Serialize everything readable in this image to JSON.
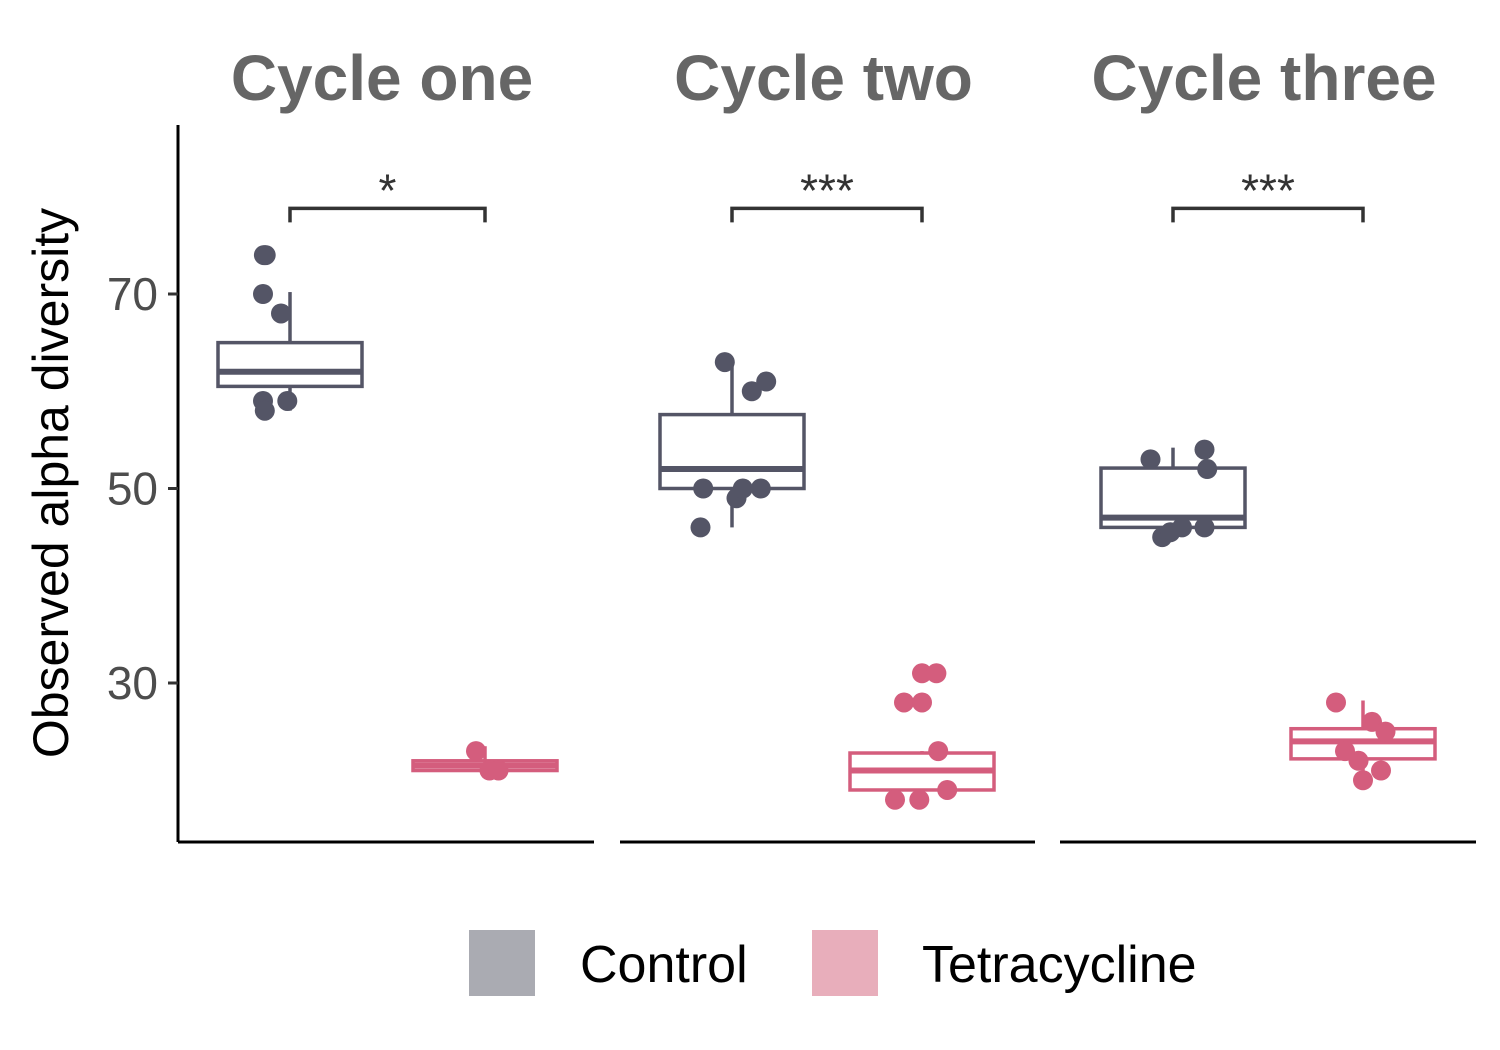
{
  "chart_data": {
    "type": "box",
    "ylabel": "Observed alpha diversity",
    "ylim": [
      13,
      90
    ],
    "yticks": [
      30,
      50,
      70
    ],
    "colors": {
      "Control": "#545566",
      "Tetracycline": "#d45d7d"
    },
    "legend": {
      "position": "bottom",
      "items": [
        {
          "label": "Control",
          "fill": "#aaabb2"
        },
        {
          "label": "Tetracycline",
          "fill": "#e8aebb"
        }
      ]
    },
    "facets": [
      {
        "title": "Cycle one",
        "significance": "*",
        "bracket_y": 78.8,
        "groups": [
          {
            "name": "Control",
            "box": {
              "low": 58,
              "q1": 60.5,
              "median": 62,
              "q3": 65,
              "high": 70.2
            },
            "points": [
              [
                -0.29,
                74
              ],
              [
                -0.27,
                74
              ],
              [
                -0.3,
                70
              ],
              [
                -0.3,
                59
              ],
              [
                -0.28,
                58
              ],
              [
                -0.1,
                68
              ],
              [
                -0.03,
                59
              ]
            ]
          },
          {
            "name": "Tetracycline",
            "box": {
              "low": 21,
              "q1": 21,
              "median": 21.5,
              "q3": 22,
              "high": 23.5
            },
            "points": [
              [
                -0.1,
                23
              ],
              [
                0.05,
                21
              ],
              [
                0.15,
                21
              ]
            ]
          }
        ]
      },
      {
        "title": "Cycle two",
        "significance": "***",
        "bracket_y": 78.8,
        "groups": [
          {
            "name": "Control",
            "box": {
              "low": 46,
              "q1": 50,
              "median": 52,
              "q3": 57.6,
              "high": 63.2
            },
            "points": [
              [
                -0.08,
                63
              ],
              [
                0.22,
                60
              ],
              [
                0.38,
                61
              ],
              [
                -0.35,
                46
              ],
              [
                -0.32,
                50
              ],
              [
                0.05,
                49
              ],
              [
                0.12,
                50
              ],
              [
                0.32,
                50
              ]
            ]
          },
          {
            "name": "Tetracycline",
            "box": {
              "low": 18,
              "q1": 19,
              "median": 21,
              "q3": 22.8,
              "high": 23
            },
            "points": [
              [
                0.0,
                31
              ],
              [
                0.16,
                31
              ],
              [
                -0.2,
                28
              ],
              [
                0.0,
                28
              ],
              [
                0.18,
                23
              ],
              [
                -0.3,
                18
              ],
              [
                -0.03,
                18
              ],
              [
                0.28,
                19
              ]
            ]
          }
        ]
      },
      {
        "title": "Cycle three",
        "significance": "***",
        "bracket_y": 78.8,
        "groups": [
          {
            "name": "Control",
            "box": {
              "low": 45,
              "q1": 46,
              "median": 47,
              "q3": 52.1,
              "high": 54.2
            },
            "points": [
              [
                -0.25,
                53
              ],
              [
                0.35,
                54
              ],
              [
                0.38,
                52
              ],
              [
                -0.12,
                45
              ],
              [
                -0.03,
                45.5
              ],
              [
                0.1,
                46
              ],
              [
                0.35,
                46
              ]
            ]
          },
          {
            "name": "Tetracycline",
            "box": {
              "low": 20,
              "q1": 22.2,
              "median": 24,
              "q3": 25.3,
              "high": 28.2
            },
            "points": [
              [
                -0.3,
                28
              ],
              [
                0.1,
                26
              ],
              [
                0.25,
                25
              ],
              [
                -0.05,
                22
              ],
              [
                0.2,
                21
              ],
              [
                -0.2,
                23
              ],
              [
                0.0,
                20
              ]
            ]
          }
        ]
      }
    ]
  }
}
